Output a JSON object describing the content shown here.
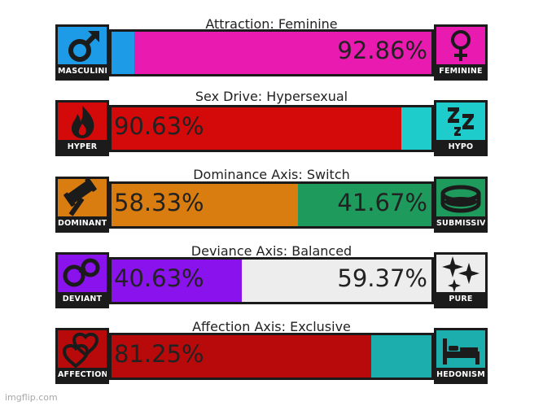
{
  "axes": [
    {
      "title": "Attraction: Feminine",
      "left_label": "MASCULINE",
      "right_label": "FEMININE",
      "left_value": 7.14,
      "right_value": 92.86,
      "left_pct_text": "",
      "right_pct_text": "92.86%",
      "left_color": "#1e9be6",
      "right_color": "#e81aaf",
      "left_icon": "male-symbol-icon",
      "right_icon": "female-symbol-icon"
    },
    {
      "title": "Sex Drive: Hypersexual",
      "left_label": "HYPER",
      "right_label": "HYPO",
      "left_value": 90.63,
      "right_value": 9.37,
      "left_pct_text": "90.63%",
      "right_pct_text": "",
      "left_color": "#d40a0a",
      "right_color": "#1fcccc",
      "left_icon": "flame-icon",
      "right_icon": "sleep-zzz-icon"
    },
    {
      "title": "Dominance Axis: Switch",
      "left_label": "DOMINANT",
      "right_label": "SUBMISSIVE",
      "left_value": 58.33,
      "right_value": 41.67,
      "left_pct_text": "58.33%",
      "right_pct_text": "41.67%",
      "left_color": "#da7d10",
      "right_color": "#1e9a5c",
      "left_icon": "gavel-icon",
      "right_icon": "collar-icon"
    },
    {
      "title": "Deviance Axis: Balanced",
      "left_label": "DEVIANT",
      "right_label": "PURE",
      "left_value": 40.63,
      "right_value": 59.37,
      "left_pct_text": "40.63%",
      "right_pct_text": "59.37%",
      "left_color": "#8a12ec",
      "right_color": "#ededed",
      "left_icon": "handcuffs-icon",
      "right_icon": "sparkles-icon"
    },
    {
      "title": "Affection Axis: Exclusive",
      "left_label": "AFFECTION",
      "right_label": "HEDONISM",
      "left_value": 81.25,
      "right_value": 18.75,
      "left_pct_text": "81.25%",
      "right_pct_text": "",
      "left_color": "#b80a0a",
      "right_color": "#1cadad",
      "left_icon": "hearts-icon",
      "right_icon": "bed-icon"
    }
  ],
  "badge_colors": {
    "MASCULINE": "#1e9be6",
    "FEMININE": "#e81aaf",
    "HYPER": "#d40a0a",
    "HYPO": "#1fcccc",
    "DOMINANT": "#da7d10",
    "SUBMISSIVE": "#1e9a5c",
    "DEVIANT": "#8a12ec",
    "PURE": "#ededed",
    "AFFECTION": "#b80a0a",
    "HEDONISM": "#1cadad"
  },
  "watermark": "imgflip.com"
}
